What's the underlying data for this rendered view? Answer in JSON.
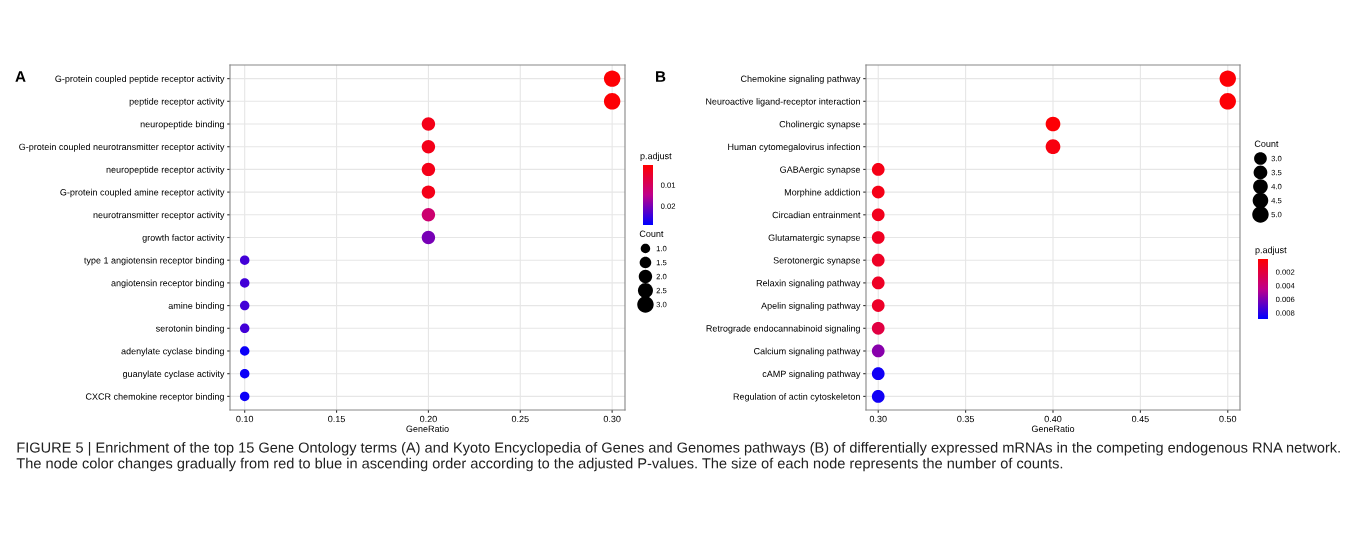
{
  "chart_data": [
    {
      "type": "bubble",
      "title": "A",
      "xlabel": "GeneRatio",
      "clabel": "p.adjust",
      "legend_title": "Count",
      "categories": [
        "G-protein coupled peptide receptor activity",
        "peptide receptor activity",
        "neuropeptide binding",
        "G-protein coupled neurotransmitter receptor activity",
        "neuropeptide receptor activity",
        "G-protein coupled amine receptor activity",
        "neurotransmitter receptor activity",
        "growth factor activity",
        "type 1 angiotensin receptor binding",
        "angiotensin receptor binding",
        "amine binding",
        "serotonin binding",
        "adenylate cyclase binding",
        "guanylate cyclase activity",
        "CXCR chemokine receptor binding"
      ],
      "values": [
        0.3,
        0.3,
        0.2,
        0.2,
        0.2,
        0.2,
        0.2,
        0.2,
        0.1,
        0.1,
        0.1,
        0.1,
        0.1,
        0.1,
        0.1
      ],
      "sizes": [
        3,
        3,
        2,
        2,
        2,
        2,
        2,
        2,
        1,
        1,
        1,
        1,
        1,
        1,
        1
      ],
      "cvalues": [
        0.001,
        0.001,
        0.003,
        0.003,
        0.003,
        0.003,
        0.012,
        0.02,
        0.024,
        0.024,
        0.024,
        0.024,
        0.028,
        0.028,
        0.028
      ],
      "clim": [
        0.0005,
        0.029
      ],
      "cticks": [
        {
          "value": 0.01,
          "label": "0.01"
        },
        {
          "value": 0.02,
          "label": "0.02"
        }
      ],
      "orientation": "horizontal",
      "size_legend": [
        {
          "value": 1,
          "label": "1.0"
        },
        {
          "value": 1.5,
          "label": "1.5"
        },
        {
          "value": 2,
          "label": "2.0"
        },
        {
          "value": 2.5,
          "label": "2.5"
        },
        {
          "value": 3,
          "label": "3.0"
        }
      ],
      "xlim": [
        0.092,
        0.307
      ],
      "xticks": [
        {
          "value": 0.1,
          "label": "0.10"
        },
        {
          "value": 0.15,
          "label": "0.15"
        },
        {
          "value": 0.2,
          "label": "0.20"
        },
        {
          "value": 0.25,
          "label": "0.25"
        },
        {
          "value": 0.3,
          "label": "0.30"
        }
      ],
      "grid": true,
      "annotations": [
        "FIGURE 5 | Enrichment of the top 15 Gene Ontology terms (A) and Kyoto Encyclopedia of Genes and Genomes pathways (B) of differentially expressed mRNAs in the competing endogenous RNA network. The node color changes gradually from red to blue in ascending order according to the adjusted P-values. The size of each node represents the number of counts."
      ]
    },
    {
      "type": "bubble",
      "title": "B",
      "xlabel": "GeneRatio",
      "clabel": "p.adjust",
      "legend_title": "Count",
      "categories": [
        "Chemokine signaling pathway",
        "Neuroactive ligand-receptor interaction",
        "Cholinergic synapse",
        "Human cytomegalovirus infection",
        "GABAergic synapse",
        "Morphine addiction",
        "Circadian entrainment",
        "Glutamatergic synapse",
        "Serotonergic synapse",
        "Relaxin signaling pathway",
        "Apelin signaling pathway",
        "Retrograde endocannabinoid signaling",
        "Calcium signaling pathway",
        "cAMP signaling pathway",
        "Regulation of actin cytoskeleton"
      ],
      "values": [
        0.5,
        0.5,
        0.4,
        0.4,
        0.3,
        0.3,
        0.3,
        0.3,
        0.3,
        0.3,
        0.3,
        0.3,
        0.3,
        0.3,
        0.3
      ],
      "sizes": [
        5,
        5,
        4,
        4,
        3,
        3,
        3,
        3,
        3,
        3,
        3,
        3,
        3,
        3,
        3
      ],
      "cvalues": [
        0.0003,
        0.0003,
        0.0003,
        0.0006,
        0.0008,
        0.0008,
        0.001,
        0.0012,
        0.0013,
        0.0013,
        0.0014,
        0.0022,
        0.0058,
        0.0085,
        0.0085
      ],
      "clim": [
        0.0001,
        0.0089
      ],
      "cticks": [
        {
          "value": 0.002,
          "label": "0.002"
        },
        {
          "value": 0.004,
          "label": "0.004"
        },
        {
          "value": 0.006,
          "label": "0.006"
        },
        {
          "value": 0.008,
          "label": "0.008"
        }
      ],
      "orientation": "horizontal",
      "size_legend": [
        {
          "value": 3,
          "label": "3.0"
        },
        {
          "value": 3.5,
          "label": "3.5"
        },
        {
          "value": 4,
          "label": "4.0"
        },
        {
          "value": 4.5,
          "label": "4.5"
        },
        {
          "value": 5,
          "label": "5.0"
        }
      ],
      "xlim": [
        0.293,
        0.507
      ],
      "xticks": [
        {
          "value": 0.3,
          "label": "0.30"
        },
        {
          "value": 0.35,
          "label": "0.35"
        },
        {
          "value": 0.4,
          "label": "0.40"
        },
        {
          "value": 0.45,
          "label": "0.45"
        },
        {
          "value": 0.5,
          "label": "0.50"
        }
      ],
      "grid": true
    }
  ]
}
